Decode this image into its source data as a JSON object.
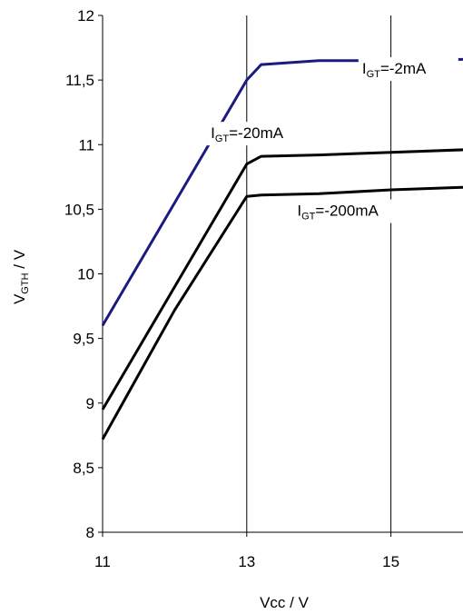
{
  "chart_data": {
    "type": "line",
    "title": "",
    "xlabel": "Vcc / V",
    "ylabel_main": "V",
    "ylabel_sub": "GTH",
    "ylabel_tail": " / V",
    "xlim": [
      11,
      16
    ],
    "ylim": [
      8,
      12
    ],
    "xticks": [
      11,
      13,
      15
    ],
    "xtick_labels": [
      "11",
      "13",
      "15"
    ],
    "yticks": [
      8,
      8.5,
      9,
      9.5,
      10,
      10.5,
      11,
      11.5,
      12
    ],
    "ytick_labels": [
      "8",
      "8,5",
      "9",
      "9,5",
      "10",
      "10,5",
      "11",
      "11,5",
      "12"
    ],
    "grid": "vertical",
    "series": [
      {
        "label_main": "I",
        "label_sub": "GT",
        "label_tail": "=-2mA",
        "color": "#1a1a80",
        "x": [
          11,
          12,
          13,
          13.2,
          14,
          15,
          16
        ],
        "y": [
          9.6,
          10.55,
          11.5,
          11.62,
          11.65,
          11.65,
          11.66
        ]
      },
      {
        "label_main": "I",
        "label_sub": "GT",
        "label_tail": "=-20mA",
        "color": "#000000",
        "x": [
          11,
          12,
          13,
          13.2,
          14,
          15,
          16
        ],
        "y": [
          8.95,
          9.9,
          10.85,
          10.91,
          10.92,
          10.94,
          10.96
        ]
      },
      {
        "label_main": "I",
        "label_sub": "GT",
        "label_tail": "=-200mA",
        "color": "#000000",
        "x": [
          11,
          12,
          13,
          13.2,
          14,
          15,
          16
        ],
        "y": [
          8.72,
          9.72,
          10.6,
          10.61,
          10.62,
          10.65,
          10.67
        ]
      }
    ]
  }
}
